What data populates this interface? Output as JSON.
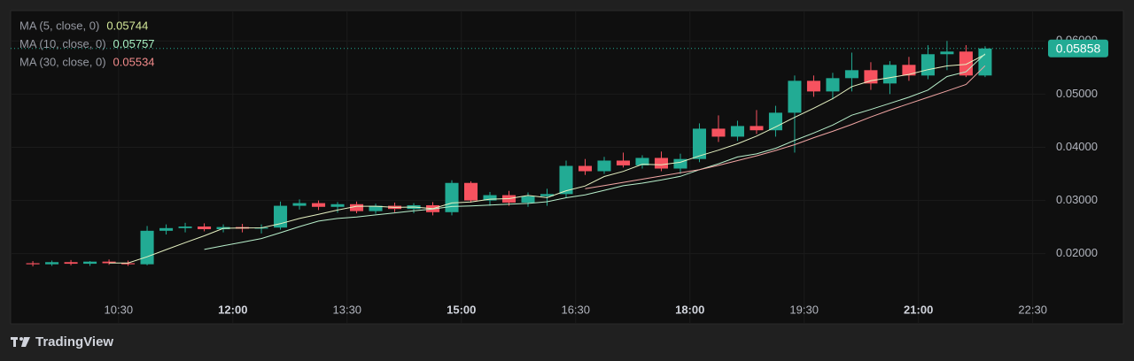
{
  "chart_data": {
    "type": "candlestick",
    "x": [
      "09:15",
      "09:30",
      "09:45",
      "10:00",
      "10:15",
      "10:30",
      "10:45",
      "11:00",
      "11:15",
      "11:30",
      "11:45",
      "12:00",
      "12:15",
      "12:30",
      "12:45",
      "13:00",
      "13:15",
      "13:30",
      "13:45",
      "14:00",
      "14:15",
      "14:30",
      "14:45",
      "15:00",
      "15:15",
      "15:30",
      "15:45",
      "16:00",
      "16:15",
      "16:30",
      "16:45",
      "17:00",
      "17:15",
      "17:30",
      "17:45",
      "18:00",
      "18:15",
      "18:30",
      "18:45",
      "19:00",
      "19:15",
      "19:30",
      "19:45",
      "20:00",
      "20:15",
      "20:30",
      "20:45",
      "21:00",
      "21:15",
      "21:30",
      "21:45"
    ],
    "open": [
      0.0182,
      0.018,
      0.0184,
      0.0181,
      0.0185,
      0.0182,
      0.018,
      0.0243,
      0.0248,
      0.0251,
      0.0246,
      0.025,
      0.0247,
      0.0249,
      0.029,
      0.0295,
      0.0288,
      0.0293,
      0.028,
      0.029,
      0.0284,
      0.0291,
      0.0278,
      0.0333,
      0.03,
      0.031,
      0.0296,
      0.0308,
      0.0312,
      0.0365,
      0.0355,
      0.0375,
      0.0366,
      0.038,
      0.036,
      0.0378,
      0.0435,
      0.042,
      0.044,
      0.0432,
      0.0465,
      0.0525,
      0.0505,
      0.053,
      0.0545,
      0.052,
      0.0555,
      0.0535,
      0.0575,
      0.058,
      0.0535
    ],
    "high": [
      0.0186,
      0.0187,
      0.0188,
      0.0186,
      0.0189,
      0.0187,
      0.0252,
      0.0255,
      0.0258,
      0.0257,
      0.0255,
      0.0256,
      0.0255,
      0.0298,
      0.0302,
      0.03,
      0.0297,
      0.0298,
      0.0294,
      0.0296,
      0.0295,
      0.0297,
      0.0338,
      0.0336,
      0.0316,
      0.0318,
      0.0315,
      0.0322,
      0.0375,
      0.0378,
      0.0382,
      0.039,
      0.0385,
      0.0392,
      0.0388,
      0.0445,
      0.046,
      0.045,
      0.047,
      0.0478,
      0.0535,
      0.0535,
      0.054,
      0.0578,
      0.056,
      0.0562,
      0.057,
      0.0592,
      0.06,
      0.0592,
      0.059
    ],
    "low": [
      0.0176,
      0.0177,
      0.0178,
      0.0177,
      0.0179,
      0.0177,
      0.0178,
      0.0236,
      0.024,
      0.0242,
      0.024,
      0.024,
      0.0238,
      0.0245,
      0.0283,
      0.0282,
      0.0277,
      0.0276,
      0.0275,
      0.0278,
      0.0276,
      0.0272,
      0.0272,
      0.0296,
      0.029,
      0.029,
      0.0288,
      0.029,
      0.0305,
      0.0348,
      0.035,
      0.0362,
      0.036,
      0.0355,
      0.035,
      0.0372,
      0.041,
      0.0412,
      0.0425,
      0.042,
      0.039,
      0.0495,
      0.049,
      0.0505,
      0.0508,
      0.05,
      0.0525,
      0.0528,
      0.0545,
      0.0532,
      0.0532
    ],
    "close": [
      0.018,
      0.0184,
      0.0181,
      0.0185,
      0.0182,
      0.018,
      0.0243,
      0.0248,
      0.0251,
      0.0246,
      0.025,
      0.0247,
      0.0249,
      0.029,
      0.0295,
      0.0288,
      0.0293,
      0.028,
      0.029,
      0.0284,
      0.0291,
      0.0278,
      0.0333,
      0.03,
      0.031,
      0.0296,
      0.0308,
      0.0312,
      0.0365,
      0.0355,
      0.0375,
      0.0366,
      0.038,
      0.036,
      0.0378,
      0.0435,
      0.042,
      0.044,
      0.0432,
      0.0465,
      0.0525,
      0.0505,
      0.053,
      0.0545,
      0.052,
      0.0555,
      0.0535,
      0.0575,
      0.058,
      0.0535,
      0.05858
    ],
    "up_color": "#22ab94",
    "down_color": "#f7525f",
    "series": [
      {
        "name": "MA (5, close, 0)",
        "color": "#e6f2c2",
        "value_color": "#d4e99a",
        "values": [
          null,
          null,
          null,
          null,
          0.01824,
          0.01824,
          0.01942,
          0.02076,
          0.02208,
          0.02336,
          0.02476,
          0.02484,
          0.02486,
          0.02564,
          0.02662,
          0.02738,
          0.0282,
          0.02892,
          0.02892,
          0.0287,
          0.02876,
          0.02846,
          0.02952,
          0.02972,
          0.03024,
          0.03034,
          0.03094,
          0.03052,
          0.03182,
          0.03272,
          0.0345,
          0.03546,
          0.03682,
          0.03672,
          0.03718,
          0.03838,
          0.03946,
          0.04066,
          0.0421,
          0.04384,
          0.04564,
          0.04734,
          0.04914,
          0.0514,
          0.0525,
          0.0531,
          0.0537,
          0.0546,
          0.0553,
          0.0556,
          0.05744
        ]
      },
      {
        "name": "MA (10, close, 0)",
        "color": "#b9f0cc",
        "value_color": "#a7efc2",
        "values": [
          null,
          null,
          null,
          null,
          null,
          null,
          null,
          null,
          null,
          0.0208,
          0.0215,
          0.02216,
          0.02284,
          0.02394,
          0.02508,
          0.02612,
          0.02662,
          0.0269,
          0.02728,
          0.02766,
          0.02807,
          0.02838,
          0.02886,
          0.02898,
          0.02913,
          0.02929,
          0.02944,
          0.02976,
          0.03051,
          0.03106,
          0.0319,
          0.03278,
          0.03325,
          0.03385,
          0.03453,
          0.03578,
          0.0369,
          0.03818,
          0.03876,
          0.03981,
          0.04131,
          0.04269,
          0.04419,
          0.04604,
          0.04712,
          0.04826,
          0.04941,
          0.05076,
          0.0533,
          0.0542,
          0.05757
        ]
      },
      {
        "name": "MA (30, close, 0)",
        "color": "#f2a6a4",
        "value_color": "#f28b8b",
        "values": [
          null,
          null,
          null,
          null,
          null,
          null,
          null,
          null,
          null,
          null,
          null,
          null,
          null,
          null,
          null,
          null,
          null,
          null,
          null,
          null,
          null,
          null,
          null,
          null,
          null,
          null,
          null,
          null,
          null,
          0.0322,
          0.0328,
          0.0334,
          0.034,
          0.0346,
          0.0352,
          0.0358,
          0.0366,
          0.0375,
          0.0384,
          0.0394,
          0.0405,
          0.0418,
          0.043,
          0.0443,
          0.0457,
          0.047,
          0.0482,
          0.0494,
          0.0506,
          0.0518,
          0.05534
        ]
      }
    ],
    "xlim": [
      "09:05",
      "22:40"
    ],
    "xticks": [
      "10:30",
      "12:00",
      "13:30",
      "15:00",
      "16:30",
      "18:00",
      "19:30",
      "21:00",
      "22:30"
    ],
    "ylim": [
      0.0068,
      0.0657
    ],
    "yticks": [
      {
        "value": 0.02,
        "label": "0.02000"
      },
      {
        "value": 0.03,
        "label": "0.03000"
      },
      {
        "value": 0.04,
        "label": "0.04000"
      },
      {
        "value": 0.05,
        "label": "0.05000"
      },
      {
        "value": 0.06,
        "label": "0.06000"
      }
    ],
    "grid": true
  },
  "branding": "TradingView"
}
